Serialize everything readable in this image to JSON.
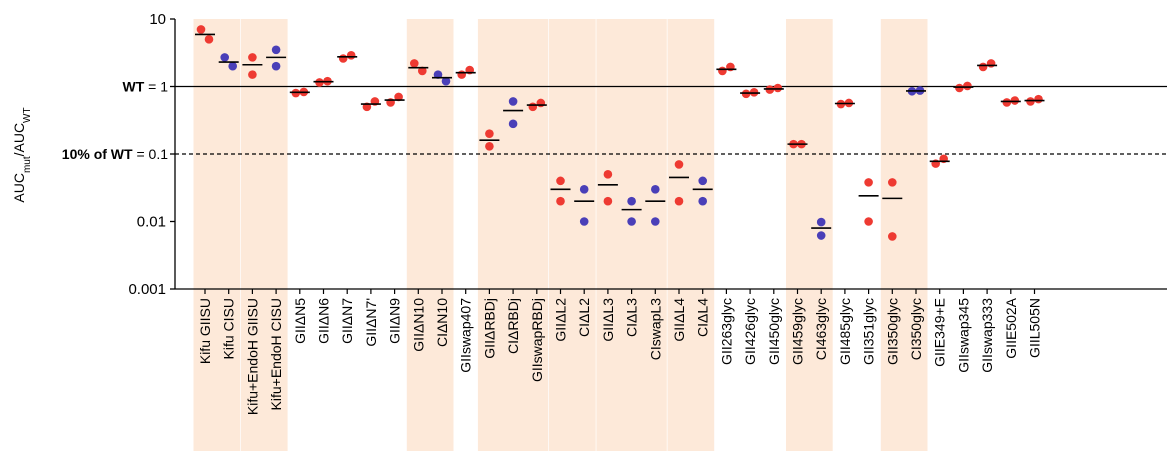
{
  "chart_data": {
    "type": "scatter",
    "y_scale": "log",
    "ylim": [
      0.001,
      10
    ],
    "yticks": [
      {
        "value": 10,
        "label": "10"
      },
      {
        "value": 1,
        "label": "1"
      },
      {
        "value": 0.1,
        "label": "0.1"
      },
      {
        "value": 0.01,
        "label": "0.01"
      },
      {
        "value": 0.001,
        "label": "0.001"
      }
    ],
    "ylabel": {
      "main": "AUC",
      "sub1": "mut",
      "mid": "/AUC",
      "sub2": "WT"
    },
    "reference_lines": [
      {
        "value": 1,
        "bold": "WT",
        "text": " = 1",
        "style": "solid"
      },
      {
        "value": 0.1,
        "bold": "10% of WT",
        "text": " = 0.1",
        "style": "dashed"
      }
    ],
    "colors": {
      "GII": "#ee3a32",
      "CI": "#4a3fb8",
      "shade": "#fde9d9",
      "mean": "#000000"
    },
    "shaded_groups": [
      [
        0,
        1
      ],
      [
        2,
        3
      ],
      [
        9,
        10
      ],
      [
        12,
        13,
        14
      ],
      [
        15,
        16
      ],
      [
        17,
        18,
        19
      ],
      [
        20,
        21
      ],
      [
        25,
        26
      ],
      [
        29,
        30
      ]
    ],
    "categories": [
      {
        "label": "Kifu GIISU",
        "color": "GII",
        "points": [
          7.0,
          5.0
        ],
        "mean": 5.9
      },
      {
        "label": "Kifu CISU",
        "color": "CI",
        "points": [
          2.7,
          2.0
        ],
        "mean": 2.3
      },
      {
        "label": "Kifu+EndoH GIISU",
        "color": "GII",
        "points": [
          2.7,
          1.5
        ],
        "mean": 2.1
      },
      {
        "label": "Kifu+EndoH CISU",
        "color": "CI",
        "points": [
          3.5,
          2.0
        ],
        "mean": 2.7
      },
      {
        "label": "GIIΔN5",
        "color": "GII",
        "points": [
          0.8,
          0.83
        ],
        "mean": 0.82
      },
      {
        "label": "GIIΔN6",
        "color": "GII",
        "points": [
          1.15,
          1.2
        ],
        "mean": 1.18
      },
      {
        "label": "GIIΔN7",
        "color": "GII",
        "points": [
          2.6,
          2.9
        ],
        "mean": 2.75
      },
      {
        "label": "GIIΔN7'",
        "color": "GII",
        "points": [
          0.5,
          0.6
        ],
        "mean": 0.55
      },
      {
        "label": "GIIΔN9",
        "color": "GII",
        "points": [
          0.58,
          0.7
        ],
        "mean": 0.63
      },
      {
        "label": "GIIΔN10",
        "color": "GII",
        "points": [
          2.2,
          1.7
        ],
        "mean": 1.9
      },
      {
        "label": "CIΔN10",
        "color": "CI",
        "points": [
          1.5,
          1.2
        ],
        "mean": 1.35
      },
      {
        "label": "GIIswap407",
        "color": "GII",
        "points": [
          1.5,
          1.75
        ],
        "mean": 1.6
      },
      {
        "label": "GIIΔRBDj",
        "color": "GII",
        "points": [
          0.2,
          0.13
        ],
        "mean": 0.16
      },
      {
        "label": "CIΔRBDj",
        "color": "CI",
        "points": [
          0.6,
          0.28
        ],
        "mean": 0.44
      },
      {
        "label": "GIIswapRBDj",
        "color": "GII",
        "points": [
          0.5,
          0.57
        ],
        "mean": 0.53
      },
      {
        "label": "GIIΔL2",
        "color": "GII",
        "points": [
          0.04,
          0.02
        ],
        "mean": 0.03
      },
      {
        "label": "CIΔL2",
        "color": "CI",
        "points": [
          0.03,
          0.01
        ],
        "mean": 0.02
      },
      {
        "label": "GIIΔL3",
        "color": "GII",
        "points": [
          0.05,
          0.02
        ],
        "mean": 0.035
      },
      {
        "label": "CIΔL3",
        "color": "CI",
        "points": [
          0.02,
          0.01
        ],
        "mean": 0.015
      },
      {
        "label": "CIswapL3",
        "color": "CI",
        "points": [
          0.03,
          0.01
        ],
        "mean": 0.02
      },
      {
        "label": "GIIΔL4",
        "color": "GII",
        "points": [
          0.07,
          0.02
        ],
        "mean": 0.045
      },
      {
        "label": "CIΔL4",
        "color": "CI",
        "points": [
          0.04,
          0.02
        ],
        "mean": 0.03
      },
      {
        "label": "GII263glyc",
        "color": "GII",
        "points": [
          1.7,
          1.95
        ],
        "mean": 1.8
      },
      {
        "label": "GII426glyc",
        "color": "GII",
        "points": [
          0.78,
          0.82
        ],
        "mean": 0.8
      },
      {
        "label": "GII450glyc",
        "color": "GII",
        "points": [
          0.9,
          0.95
        ],
        "mean": 0.92
      },
      {
        "label": "GII459glyc",
        "color": "GII",
        "points": [
          0.14,
          0.14
        ],
        "mean": 0.14
      },
      {
        "label": "CI463glyc",
        "color": "CI",
        "points": [
          0.0098,
          0.0062
        ],
        "mean": 0.008
      },
      {
        "label": "GII485glyc",
        "color": "GII",
        "points": [
          0.55,
          0.57
        ],
        "mean": 0.56
      },
      {
        "label": "GII351glyc",
        "color": "GII",
        "points": [
          0.038,
          0.01
        ],
        "mean": 0.024
      },
      {
        "label": "GII350glyc",
        "color": "GII",
        "points": [
          0.038,
          0.006
        ],
        "mean": 0.022
      },
      {
        "label": "CI350glyc",
        "color": "CI",
        "points": [
          0.85,
          0.87
        ],
        "mean": 0.86
      },
      {
        "label": "GIIE349+E",
        "color": "GII",
        "points": [
          0.072,
          0.085
        ],
        "mean": 0.078
      },
      {
        "label": "GIIswap345",
        "color": "GII",
        "points": [
          0.95,
          1.02
        ],
        "mean": 0.98
      },
      {
        "label": "GIIswap333",
        "color": "GII",
        "points": [
          1.95,
          2.2
        ],
        "mean": 2.05
      },
      {
        "label": "GIIE502A",
        "color": "GII",
        "points": [
          0.58,
          0.62
        ],
        "mean": 0.6
      },
      {
        "label": "GIIL505N",
        "color": "GII",
        "points": [
          0.6,
          0.65
        ],
        "mean": 0.62
      }
    ]
  }
}
